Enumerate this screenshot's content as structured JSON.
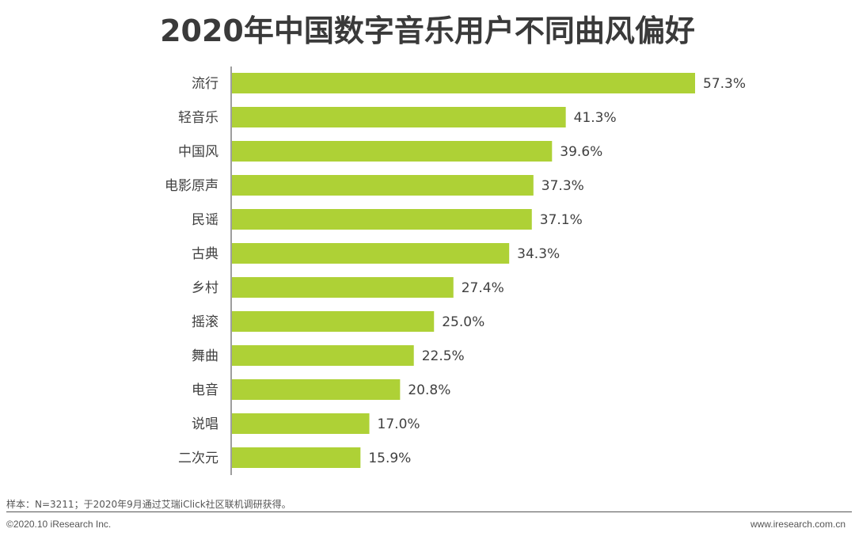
{
  "chart_data": {
    "type": "bar",
    "orientation": "horizontal",
    "title": "2020年中国数字音乐用户不同曲风偏好",
    "categories": [
      "流行",
      "轻音乐",
      "中国风",
      "电影原声",
      "民谣",
      "古典",
      "乡村",
      "摇滚",
      "舞曲",
      "电音",
      "说唱",
      "二次元"
    ],
    "values": [
      57.3,
      41.3,
      39.6,
      37.3,
      37.1,
      34.3,
      27.4,
      25.0,
      22.5,
      20.8,
      17.0,
      15.9
    ],
    "value_labels": [
      "57.3%",
      "41.3%",
      "39.6%",
      "37.3%",
      "37.1%",
      "34.3%",
      "27.4%",
      "25.0%",
      "22.5%",
      "20.8%",
      "17.0%",
      "15.9%"
    ],
    "unit": "%",
    "xlim": [
      0,
      57.3
    ],
    "bar_color": "#aed136",
    "grid": false,
    "legend": "none"
  },
  "footer": {
    "note": "样本：N=3211；于2020年9月通过艾瑞iClick社区联机调研获得。",
    "copyright": "©2020.10 iResearch Inc.",
    "website": "www.iresearch.com.cn"
  }
}
